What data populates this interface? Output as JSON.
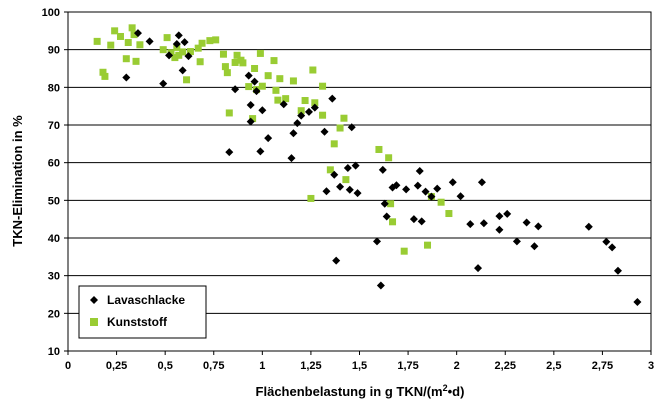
{
  "chart_data": {
    "type": "scatter",
    "title": "",
    "xlabel": "Flächenbelastung in g TKN/(m²•d)",
    "xlabel_parts": {
      "pre": "Flächenbelastung in g TKN/(m",
      "sup": "2",
      "post": "•d)"
    },
    "ylabel": "TKN-Elimination in %",
    "xlim": [
      0,
      3
    ],
    "ylim": [
      10,
      100
    ],
    "x_ticks": [
      0,
      0.25,
      0.5,
      0.75,
      1,
      1.25,
      1.5,
      1.75,
      2,
      2.25,
      2.5,
      2.75,
      3
    ],
    "x_tick_labels": [
      "0",
      "0,25",
      "0,5",
      "0,75",
      "1",
      "1,25",
      "1,5",
      "1,75",
      "2",
      "2,25",
      "2,5",
      "2,75",
      "3"
    ],
    "y_ticks": [
      10,
      20,
      30,
      40,
      50,
      60,
      70,
      80,
      90,
      100
    ],
    "y_tick_labels": [
      "10",
      "20",
      "30",
      "40",
      "50",
      "60",
      "70",
      "80",
      "90",
      "100"
    ],
    "grid": "horizontal major gridlines",
    "legend_position": "bottom-left",
    "series": [
      {
        "name": "Lavaschlacke",
        "marker": "diamond",
        "color": "#000000",
        "points": [
          [
            0.3,
            82.6
          ],
          [
            0.36,
            94.4
          ],
          [
            0.42,
            92.2
          ],
          [
            0.49,
            81.0
          ],
          [
            0.52,
            88.5
          ],
          [
            0.56,
            91.5
          ],
          [
            0.57,
            93.8
          ],
          [
            0.59,
            84.5
          ],
          [
            0.6,
            92.0
          ],
          [
            0.62,
            88.3
          ],
          [
            0.83,
            62.8
          ],
          [
            0.86,
            79.5
          ],
          [
            0.93,
            83.1
          ],
          [
            0.94,
            75.3
          ],
          [
            0.94,
            70.9
          ],
          [
            0.96,
            81.5
          ],
          [
            0.97,
            79.0
          ],
          [
            0.99,
            63.0
          ],
          [
            1.0,
            73.9
          ],
          [
            1.03,
            66.5
          ],
          [
            1.11,
            75.5
          ],
          [
            1.15,
            61.2
          ],
          [
            1.16,
            67.8
          ],
          [
            1.18,
            70.5
          ],
          [
            1.2,
            72.5
          ],
          [
            1.24,
            73.5
          ],
          [
            1.27,
            74.6
          ],
          [
            1.32,
            68.2
          ],
          [
            1.33,
            52.4
          ],
          [
            1.36,
            77.0
          ],
          [
            1.37,
            56.8
          ],
          [
            1.38,
            34.0
          ],
          [
            1.4,
            53.6
          ],
          [
            1.44,
            58.6
          ],
          [
            1.45,
            52.8
          ],
          [
            1.46,
            69.4
          ],
          [
            1.48,
            59.2
          ],
          [
            1.49,
            51.9
          ],
          [
            1.59,
            39.1
          ],
          [
            1.61,
            27.4
          ],
          [
            1.62,
            58.1
          ],
          [
            1.63,
            49.1
          ],
          [
            1.64,
            45.7
          ],
          [
            1.67,
            53.4
          ],
          [
            1.69,
            54.0
          ],
          [
            1.74,
            52.9
          ],
          [
            1.78,
            45.0
          ],
          [
            1.8,
            53.9
          ],
          [
            1.81,
            57.8
          ],
          [
            1.82,
            44.4
          ],
          [
            1.84,
            52.3
          ],
          [
            1.87,
            51.0
          ],
          [
            1.9,
            53.1
          ],
          [
            1.98,
            54.8
          ],
          [
            2.02,
            51.1
          ],
          [
            2.07,
            43.7
          ],
          [
            2.11,
            32.0
          ],
          [
            2.13,
            54.8
          ],
          [
            2.14,
            43.9
          ],
          [
            2.22,
            42.2
          ],
          [
            2.22,
            45.8
          ],
          [
            2.26,
            46.4
          ],
          [
            2.31,
            39.1
          ],
          [
            2.36,
            44.1
          ],
          [
            2.4,
            37.8
          ],
          [
            2.42,
            43.1
          ],
          [
            2.68,
            43.0
          ],
          [
            2.77,
            39.0
          ],
          [
            2.8,
            37.5
          ],
          [
            2.83,
            31.3
          ],
          [
            2.93,
            23.0
          ]
        ]
      },
      {
        "name": "Kunststoff",
        "marker": "square",
        "color": "#99cc33",
        "points": [
          [
            0.15,
            92.2
          ],
          [
            0.18,
            84.0
          ],
          [
            0.19,
            82.9
          ],
          [
            0.22,
            91.2
          ],
          [
            0.24,
            95.0
          ],
          [
            0.27,
            93.5
          ],
          [
            0.3,
            87.6
          ],
          [
            0.31,
            91.9
          ],
          [
            0.33,
            95.8
          ],
          [
            0.34,
            94.0
          ],
          [
            0.35,
            86.9
          ],
          [
            0.37,
            91.3
          ],
          [
            0.49,
            90.0
          ],
          [
            0.51,
            93.2
          ],
          [
            0.53,
            89.2
          ],
          [
            0.55,
            87.9
          ],
          [
            0.56,
            90.6
          ],
          [
            0.57,
            88.5
          ],
          [
            0.59,
            89.4
          ],
          [
            0.61,
            82.0
          ],
          [
            0.63,
            89.5
          ],
          [
            0.67,
            90.4
          ],
          [
            0.68,
            86.8
          ],
          [
            0.69,
            91.7
          ],
          [
            0.73,
            92.4
          ],
          [
            0.76,
            92.6
          ],
          [
            0.8,
            88.8
          ],
          [
            0.81,
            85.5
          ],
          [
            0.82,
            83.9
          ],
          [
            0.83,
            73.2
          ],
          [
            0.86,
            86.6
          ],
          [
            0.87,
            88.5
          ],
          [
            0.89,
            87.2
          ],
          [
            0.9,
            86.5
          ],
          [
            0.93,
            80.2
          ],
          [
            0.95,
            71.7
          ],
          [
            0.96,
            85.0
          ],
          [
            0.97,
            79.4
          ],
          [
            0.99,
            89.0
          ],
          [
            1.0,
            80.3
          ],
          [
            1.03,
            83.1
          ],
          [
            1.06,
            87.1
          ],
          [
            1.07,
            79.2
          ],
          [
            1.08,
            76.6
          ],
          [
            1.09,
            82.3
          ],
          [
            1.12,
            77.0
          ],
          [
            1.16,
            81.7
          ],
          [
            1.2,
            73.8
          ],
          [
            1.22,
            76.5
          ],
          [
            1.25,
            50.5
          ],
          [
            1.26,
            84.6
          ],
          [
            1.27,
            75.9
          ],
          [
            1.31,
            80.3
          ],
          [
            1.31,
            72.6
          ],
          [
            1.35,
            58.1
          ],
          [
            1.37,
            65.0
          ],
          [
            1.4,
            69.2
          ],
          [
            1.42,
            71.8
          ],
          [
            1.43,
            55.5
          ],
          [
            1.6,
            63.5
          ],
          [
            1.65,
            61.3
          ],
          [
            1.66,
            49.1
          ],
          [
            1.67,
            44.3
          ],
          [
            1.73,
            36.5
          ],
          [
            1.85,
            38.1
          ],
          [
            1.87,
            51.0
          ],
          [
            1.92,
            49.5
          ],
          [
            1.96,
            46.5
          ]
        ]
      }
    ]
  }
}
